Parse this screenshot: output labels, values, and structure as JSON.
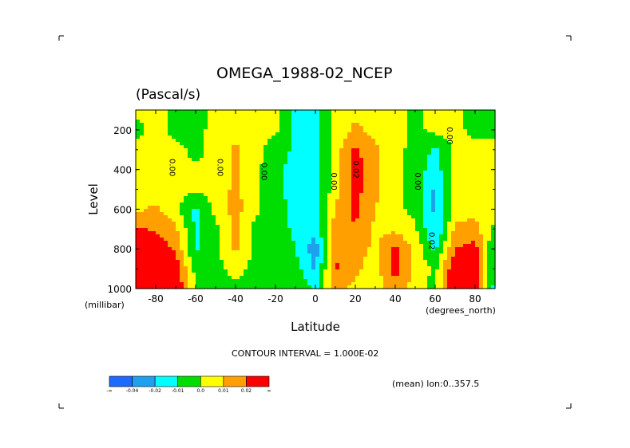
{
  "chart_data": {
    "type": "heatmap",
    "title": "OMEGA_1988-02_NCEP",
    "subtitle": "(Pascal/s)",
    "xlabel": "Latitude",
    "ylabel": "Level",
    "x_unit": "(degrees_north)",
    "y_unit": "(millibar)",
    "xlim": [
      -90,
      90
    ],
    "ylim": [
      1000,
      100
    ],
    "y_reversed": true,
    "x_ticks": [
      "-80",
      "-60",
      "-40",
      "-20",
      "0",
      "20",
      "40",
      "60",
      "80"
    ],
    "x_tick_values": [
      -80,
      -60,
      -40,
      -20,
      0,
      20,
      40,
      60,
      80
    ],
    "y_ticks": [
      "200",
      "400",
      "600",
      "800",
      "1000"
    ],
    "y_tick_values": [
      200,
      400,
      600,
      800,
      1000
    ],
    "contour_interval_text": "CONTOUR INTERVAL = 1.000E-02",
    "mean_text": "(mean) lon:0..357.5",
    "colorbar": {
      "colors": [
        "#1e69ff",
        "#1ea0ee",
        "#00ffff",
        "#00dd00",
        "#ffff00",
        "#ffa000",
        "#ff0000"
      ],
      "labels": [
        "-∞",
        "-0.04",
        "-0.02",
        "-0.01",
        "0.0",
        "0.01",
        "0.02",
        "∞"
      ]
    },
    "contour_labels": [
      "0.00",
      "0.00",
      "0.00",
      "0.02",
      "0.00",
      "0.00",
      "0.00",
      "0.02"
    ],
    "levels": [
      -0.04,
      -0.02,
      -0.01,
      0.0,
      0.01,
      0.02
    ],
    "lat": [
      -90,
      -80,
      -70,
      -60,
      -50,
      -40,
      -30,
      -20,
      -10,
      0,
      10,
      20,
      30,
      40,
      50,
      60,
      70,
      80,
      90
    ],
    "lev": [
      100,
      200,
      300,
      400,
      500,
      600,
      700,
      800,
      900,
      1000
    ],
    "values": [
      [
        0.002,
        0.003,
        -0.003,
        -0.003,
        0.002,
        0.002,
        0.003,
        0.003,
        -0.012,
        -0.012,
        0.002,
        0.008,
        0.005,
        0.003,
        -0.003,
        0.003,
        0.002,
        -0.003,
        -0.003
      ],
      [
        -0.003,
        0.003,
        -0.003,
        -0.003,
        0.003,
        0.005,
        0.003,
        0.002,
        -0.012,
        -0.012,
        0.003,
        0.012,
        0.007,
        0.003,
        -0.003,
        0.003,
        0.003,
        -0.003,
        -0.003
      ],
      [
        0.003,
        0.003,
        0.003,
        -0.003,
        0.003,
        0.012,
        0.003,
        -0.005,
        -0.012,
        -0.015,
        0.005,
        0.022,
        0.012,
        0.003,
        -0.003,
        -0.012,
        0.003,
        0.003,
        0.003
      ],
      [
        0.003,
        0.003,
        0.003,
        0.002,
        0.003,
        0.013,
        0.003,
        -0.008,
        -0.013,
        -0.015,
        0.006,
        0.025,
        0.012,
        0.003,
        -0.005,
        -0.015,
        0.003,
        0.003,
        0.003
      ],
      [
        0.003,
        0.005,
        0.003,
        0.002,
        0.003,
        0.013,
        0.002,
        -0.008,
        -0.013,
        -0.016,
        0.006,
        0.024,
        0.012,
        0.003,
        -0.005,
        -0.022,
        0.003,
        0.003,
        0.003
      ],
      [
        0.008,
        0.012,
        0.003,
        -0.012,
        0.003,
        0.014,
        0.002,
        -0.006,
        -0.013,
        -0.017,
        0.012,
        0.022,
        0.01,
        0.003,
        -0.003,
        -0.022,
        0.006,
        0.006,
        0.003
      ],
      [
        0.022,
        0.018,
        0.012,
        -0.012,
        -0.003,
        0.013,
        -0.003,
        -0.005,
        -0.012,
        -0.018,
        0.014,
        0.02,
        0.008,
        0.008,
        0.002,
        -0.022,
        0.012,
        0.014,
        -0.003
      ],
      [
        0.035,
        0.028,
        0.018,
        -0.012,
        -0.003,
        0.012,
        -0.003,
        -0.003,
        -0.01,
        -0.026,
        0.018,
        0.014,
        0.008,
        0.022,
        0.007,
        -0.012,
        0.02,
        0.024,
        -0.012
      ],
      [
        0.05,
        0.04,
        0.026,
        -0.003,
        -0.003,
        0.003,
        -0.003,
        -0.003,
        -0.005,
        -0.022,
        0.022,
        0.012,
        0.005,
        0.025,
        0.008,
        -0.003,
        0.03,
        0.028,
        -0.012
      ],
      [
        0.06,
        0.05,
        0.032,
        -0.003,
        -0.003,
        -0.003,
        -0.003,
        -0.003,
        -0.003,
        -0.012,
        0.012,
        0.008,
        0.005,
        0.015,
        0.005,
        -0.003,
        0.035,
        0.03,
        -0.015
      ]
    ]
  }
}
